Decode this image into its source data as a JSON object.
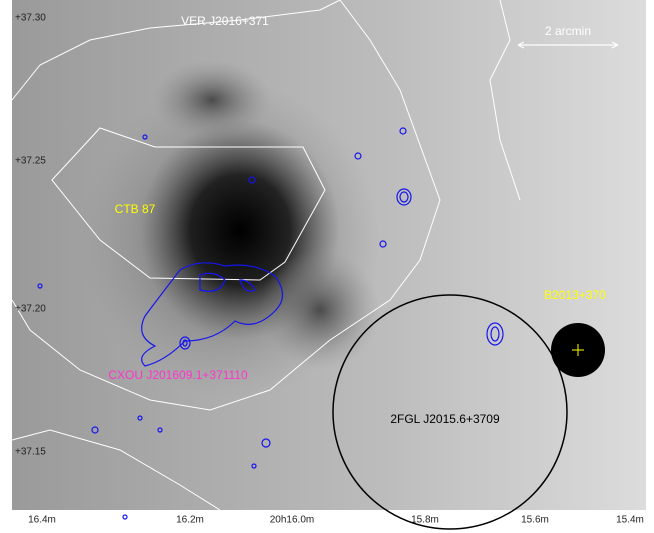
{
  "axes": {
    "y_labels": [
      "+37.30",
      "+37.25",
      "+37.20",
      "+37.15"
    ],
    "x_labels": [
      "16.4m",
      "16.2m",
      "20h16.0m",
      "15.8m",
      "15.6m",
      "15.4m"
    ]
  },
  "annotations": {
    "tev_source": "VER J2016+371",
    "scale_bar": "2 arcmin",
    "snr": "CTB 87",
    "radio_source": "B2013+370",
    "xray_source": "CXOU J201609.1+371110",
    "fermi_source": "2FGL J2015.6+3709"
  }
}
